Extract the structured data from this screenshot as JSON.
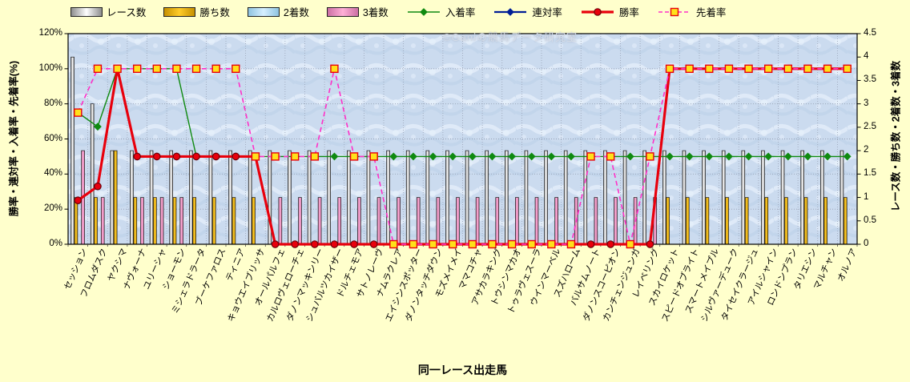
{
  "watermark": "©Ganiの競馬データ研究室",
  "legend": {
    "items": [
      {
        "label": "レース数",
        "type": "bar",
        "series": "races"
      },
      {
        "label": "勝ち数",
        "type": "bar",
        "series": "wins"
      },
      {
        "label": "2着数",
        "type": "bar",
        "series": "seconds"
      },
      {
        "label": "3着数",
        "type": "bar",
        "series": "thirds"
      },
      {
        "label": "入着率",
        "type": "line",
        "marker": "diamond",
        "dashed": false,
        "series": "placing_rate"
      },
      {
        "label": "連対率",
        "type": "line",
        "marker": "diamond",
        "dashed": false,
        "series": "rentai_rate"
      },
      {
        "label": "勝率",
        "type": "line",
        "marker": "circle",
        "dashed": false,
        "series": "win_rate"
      },
      {
        "label": "先着率",
        "type": "line",
        "marker": "square",
        "dashed": true,
        "series": "ahead_rate"
      }
    ]
  },
  "axes": {
    "left": {
      "title": "勝率・連対率・入着率・先着率(%)",
      "tick_labels": [
        "0%",
        "20%",
        "40%",
        "60%",
        "80%",
        "100%",
        "120%"
      ]
    },
    "right": {
      "title": "レース数・勝ち数・2着数・3着数",
      "tick_labels": [
        "0",
        "0.5",
        "1",
        "1.5",
        "2",
        "2.5",
        "3",
        "3.5",
        "4",
        "4.5"
      ]
    },
    "x": {
      "title": "同一レース出走馬"
    }
  },
  "colors": {
    "background": "#FFFFCC",
    "plot_background": "#CBDBEF",
    "grid": "#98A1B4",
    "races": {
      "center": "#FFFFFF",
      "edge": "#8E8E8E"
    },
    "wins": {
      "center": "#FFCC2A",
      "edge": "#C69000"
    },
    "seconds": {
      "center": "#D6EFFF",
      "edge": "#8FC3E0"
    },
    "thirds": {
      "center": "#FFAFD6",
      "edge": "#CC6FA4"
    },
    "placing_rate": "#0F8A10",
    "rentai_rate": "#001E96",
    "win_rate": "#E8000C",
    "ahead_rate": "#FF30C8",
    "square_marker_fill": "#FFE11A",
    "circle_marker_stroke": "#6E0008"
  },
  "chart_data": {
    "type": "combo-bar-line",
    "title": "",
    "xlabel": "同一レース出走馬",
    "left_axis": {
      "label": "勝率・連対率・入着率・先着率(%)",
      "min": 0,
      "max": 120,
      "unit": "%",
      "grid_step": 20
    },
    "right_axis": {
      "label": "レース数・勝ち数・2着数・3着数",
      "min": 0,
      "max": 4.5,
      "step": 0.5
    },
    "grid": true,
    "legend_position": "top",
    "categories": [
      "セッション",
      "フロムダスク",
      "ヤクシマ",
      "ナヴォーナ",
      "ユリーシャ",
      "ショーモン",
      "ミシェラドラータ",
      "ブーケファロス",
      "ティニア",
      "キョウエイブリッサ",
      "オールパルフェ",
      "カルロヴェローチェ",
      "ダノンマッキンリー",
      "シュバルツカイザー",
      "ドルチェモア",
      "サトノレーヴ",
      "ナムラクレア",
      "エイシンスポッター",
      "ダノンタッチダウン",
      "モズメイメイ",
      "ママコチャ",
      "アサカラキング",
      "トウシンマカオ",
      "トゥラヴェスーラ",
      "ウインマーベル",
      "スズハローム",
      "バルサムノート",
      "ダノンスコーピオン",
      "カンチェンジュンガ",
      "レイベリング",
      "スカイロケット",
      "スピードオブライト",
      "スマートメイプル",
      "シルヴァーデューク",
      "タイセイクラージュ",
      "アイルシャイン",
      "ロンドンプラン",
      "タリエシン",
      "マルチャン",
      "オルノア"
    ],
    "bar_series": [
      {
        "name": "レース数",
        "key": "races",
        "axis": "right",
        "values": [
          4,
          3,
          2,
          2,
          2,
          2,
          2,
          2,
          2,
          2,
          2,
          2,
          2,
          2,
          2,
          2,
          2,
          2,
          2,
          2,
          2,
          2,
          2,
          2,
          2,
          2,
          2,
          2,
          2,
          2,
          2,
          2,
          2,
          2,
          2,
          2,
          2,
          2,
          2,
          2
        ]
      },
      {
        "name": "勝ち数",
        "key": "wins",
        "axis": "right",
        "values": [
          1,
          1,
          2,
          1,
          1,
          1,
          1,
          1,
          1,
          1,
          0,
          0,
          0,
          0,
          0,
          0,
          0,
          0,
          0,
          0,
          0,
          0,
          0,
          0,
          0,
          0,
          0,
          0,
          0,
          0,
          1,
          1,
          1,
          1,
          1,
          1,
          1,
          1,
          1,
          1
        ]
      },
      {
        "name": "2着数",
        "key": "seconds",
        "axis": "right",
        "values": [
          0,
          0,
          0,
          0,
          0,
          0,
          0,
          0,
          0,
          0,
          0,
          0,
          0,
          0,
          0,
          0,
          0,
          0,
          0,
          0,
          0,
          0,
          0,
          0,
          0,
          0,
          0,
          0,
          0,
          0,
          0,
          0,
          0,
          0,
          0,
          0,
          0,
          0,
          0,
          0
        ]
      },
      {
        "name": "3着数",
        "key": "thirds",
        "axis": "right",
        "values": [
          2,
          1,
          0,
          1,
          1,
          1,
          0,
          0,
          0,
          0,
          1,
          1,
          1,
          1,
          1,
          1,
          1,
          1,
          1,
          1,
          1,
          1,
          1,
          1,
          1,
          1,
          1,
          1,
          1,
          1,
          0,
          0,
          0,
          0,
          0,
          0,
          0,
          0,
          0,
          0
        ]
      }
    ],
    "line_series": [
      {
        "name": "入着率",
        "key": "placing_rate",
        "axis": "left",
        "marker": "diamond",
        "dashed": false,
        "values": [
          75,
          67,
          100,
          100,
          100,
          100,
          50,
          50,
          50,
          50,
          50,
          50,
          50,
          50,
          50,
          50,
          50,
          50,
          50,
          50,
          50,
          50,
          50,
          50,
          50,
          50,
          50,
          50,
          50,
          50,
          50,
          50,
          50,
          50,
          50,
          50,
          50,
          50,
          50,
          50
        ]
      },
      {
        "name": "連対率",
        "key": "rentai_rate",
        "axis": "left",
        "marker": "diamond",
        "dashed": false,
        "values": [
          25,
          33,
          100,
          50,
          50,
          50,
          50,
          50,
          50,
          50,
          0,
          0,
          0,
          0,
          0,
          0,
          0,
          0,
          0,
          0,
          0,
          0,
          0,
          0,
          0,
          0,
          0,
          0,
          0,
          0,
          100,
          100,
          100,
          100,
          100,
          100,
          100,
          100,
          100,
          100
        ]
      },
      {
        "name": "勝率",
        "key": "win_rate",
        "axis": "left",
        "marker": "circle",
        "dashed": false,
        "values": [
          25,
          33,
          100,
          50,
          50,
          50,
          50,
          50,
          50,
          50,
          0,
          0,
          0,
          0,
          0,
          0,
          0,
          0,
          0,
          0,
          0,
          0,
          0,
          0,
          0,
          0,
          0,
          0,
          0,
          0,
          100,
          100,
          100,
          100,
          100,
          100,
          100,
          100,
          100,
          100
        ]
      },
      {
        "name": "先着率",
        "key": "ahead_rate",
        "axis": "left",
        "marker": "square",
        "dashed": true,
        "values": [
          75,
          100,
          100,
          100,
          100,
          100,
          100,
          100,
          100,
          50,
          50,
          50,
          50,
          100,
          50,
          50,
          0,
          0,
          0,
          0,
          0,
          0,
          0,
          0,
          0,
          0,
          50,
          50,
          0,
          50,
          100,
          100,
          100,
          100,
          100,
          100,
          100,
          100,
          100,
          100
        ]
      }
    ]
  }
}
